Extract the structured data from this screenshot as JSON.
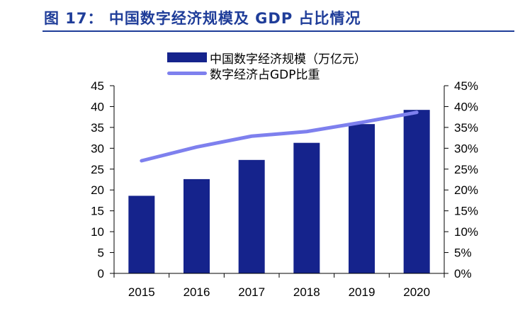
{
  "figure": {
    "title": "图 17： 中国数字经济规模及 GDP 占比情况"
  },
  "legend": {
    "bar_label": "中国数字经济规模（万亿元）",
    "line_label": "数字经济占GDP比重"
  },
  "colors": {
    "bar": "#15238c",
    "line": "#7e80ee",
    "title": "#1f3d99"
  },
  "chart_data": {
    "type": "bar",
    "categories": [
      "2015",
      "2016",
      "2017",
      "2018",
      "2019",
      "2020"
    ],
    "series": [
      {
        "name": "中国数字经济规模（万亿元）",
        "type": "bar",
        "axis": "left",
        "values": [
          18.6,
          22.6,
          27.2,
          31.3,
          35.8,
          39.2
        ]
      },
      {
        "name": "数字经济占GDP比重",
        "type": "line",
        "axis": "right",
        "values": [
          27.0,
          30.3,
          32.9,
          34.0,
          36.2,
          38.6
        ]
      }
    ],
    "y_left": {
      "range": [
        0,
        45
      ],
      "ticks": [
        "0",
        "5",
        "10",
        "15",
        "20",
        "25",
        "30",
        "35",
        "40",
        "45"
      ]
    },
    "y_right": {
      "range": [
        0,
        45
      ],
      "ticks": [
        "0%",
        "5%",
        "10%",
        "15%",
        "20%",
        "25%",
        "30%",
        "35%",
        "40%",
        "45%"
      ]
    },
    "grid": false,
    "legend_position": "top"
  }
}
